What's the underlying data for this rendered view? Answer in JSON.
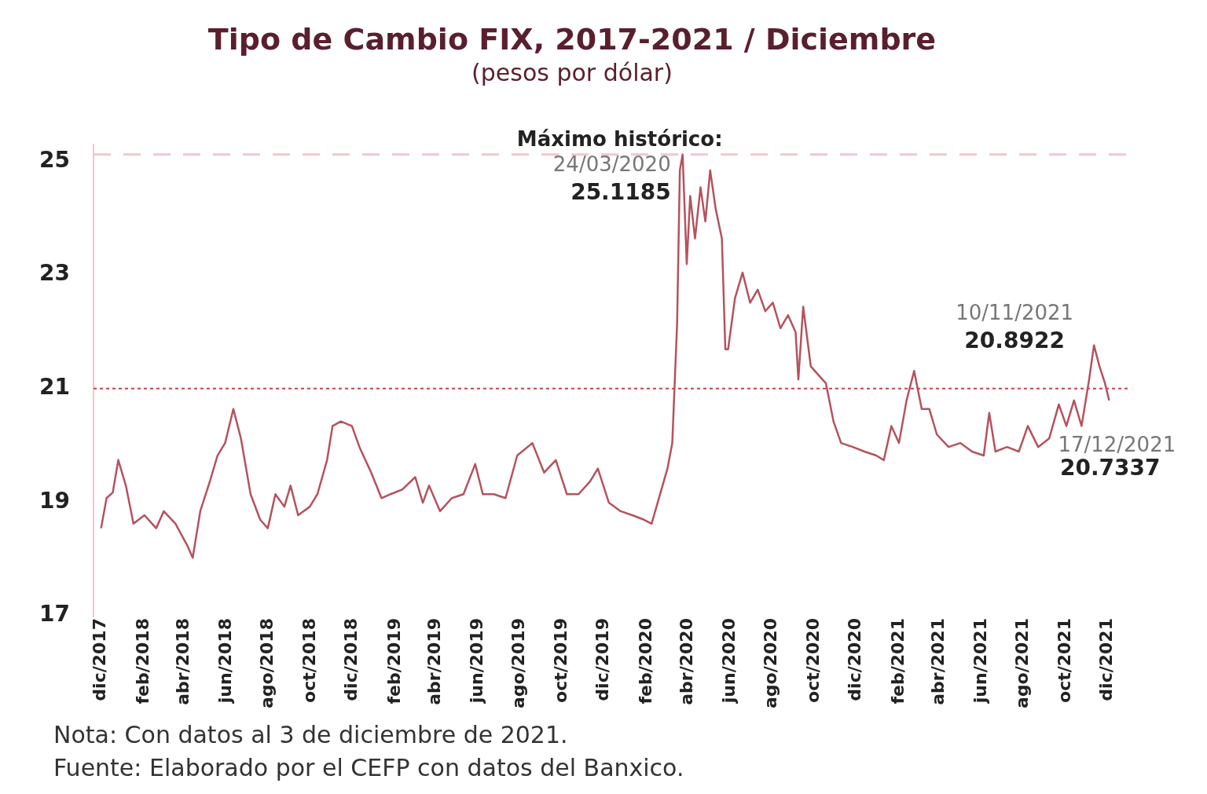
{
  "chart_data": {
    "type": "line",
    "title": "Tipo de Cambio FIX, 2017-2021 / Diciembre",
    "subtitle": "(pesos por dólar)",
    "x": [
      "2017-12-01",
      "2017-12-09",
      "2017-12-18",
      "2017-12-26",
      "2018-01-06",
      "2018-01-17",
      "2018-02-02",
      "2018-02-19",
      "2018-03-02",
      "2018-03-19",
      "2018-04-05",
      "2018-04-13",
      "2018-04-24",
      "2018-05-08",
      "2018-05-19",
      "2018-05-30",
      "2018-06-11",
      "2018-06-22",
      "2018-07-06",
      "2018-07-20",
      "2018-07-31",
      "2018-08-11",
      "2018-08-24",
      "2018-09-02",
      "2018-09-13",
      "2018-09-30",
      "2018-10-11",
      "2018-10-25",
      "2018-11-02",
      "2018-11-14",
      "2018-11-30",
      "2018-12-11",
      "2018-12-28",
      "2019-01-12",
      "2019-01-25",
      "2019-02-11",
      "2019-03-02",
      "2019-03-13",
      "2019-03-22",
      "2019-04-07",
      "2019-04-24",
      "2019-05-11",
      "2019-05-28",
      "2019-06-08",
      "2019-06-24",
      "2019-07-11",
      "2019-07-28",
      "2019-08-19",
      "2019-09-05",
      "2019-09-22",
      "2019-10-08",
      "2019-10-25",
      "2019-11-11",
      "2019-11-22",
      "2019-12-08",
      "2019-12-25",
      "2020-01-11",
      "2020-01-28",
      "2020-02-08",
      "2020-03-02",
      "2020-03-09",
      "2020-03-16",
      "2020-03-20",
      "2020-03-24",
      "2020-03-30",
      "2020-04-04",
      "2020-04-11",
      "2020-04-19",
      "2020-04-26",
      "2020-05-03",
      "2020-05-11",
      "2020-05-20",
      "2020-05-25",
      "2020-05-29",
      "2020-06-08",
      "2020-06-19",
      "2020-06-30",
      "2020-07-11",
      "2020-07-22",
      "2020-08-02",
      "2020-08-13",
      "2020-08-24",
      "2020-09-04",
      "2020-09-08",
      "2020-09-15",
      "2020-09-26",
      "2020-10-07",
      "2020-10-18",
      "2020-10-29",
      "2020-11-09",
      "2020-11-26",
      "2020-12-13",
      "2020-12-30",
      "2021-01-10",
      "2021-01-21",
      "2021-02-01",
      "2021-02-12",
      "2021-02-23",
      "2021-03-06",
      "2021-03-17",
      "2021-03-28",
      "2021-04-14",
      "2021-05-01",
      "2021-05-18",
      "2021-06-04",
      "2021-06-12",
      "2021-06-21",
      "2021-07-08",
      "2021-07-25",
      "2021-08-07",
      "2021-08-22",
      "2021-09-07",
      "2021-09-21",
      "2021-10-02",
      "2021-10-13",
      "2021-10-24",
      "2021-11-04",
      "2021-11-11",
      "2021-11-19",
      "2021-11-27",
      "2021-12-03"
    ],
    "series": [
      {
        "color": "#b5525e",
        "values": [
          18.54,
          19.07,
          19.17,
          19.74,
          19.29,
          18.62,
          18.77,
          18.54,
          18.84,
          18.62,
          18.24,
          18.02,
          18.84,
          19.37,
          19.82,
          20.04,
          20.64,
          20.12,
          19.14,
          18.69,
          18.54,
          19.14,
          18.92,
          19.29,
          18.77,
          18.92,
          19.14,
          19.74,
          20.34,
          20.42,
          20.34,
          19.97,
          19.52,
          19.07,
          19.14,
          19.22,
          19.44,
          18.99,
          19.29,
          18.84,
          19.07,
          19.14,
          19.67,
          19.14,
          19.14,
          19.07,
          19.82,
          20.04,
          19.52,
          19.74,
          19.14,
          19.14,
          19.37,
          19.59,
          18.99,
          18.84,
          18.77,
          18.69,
          18.62,
          19.59,
          20.04,
          22.14,
          24.84,
          25.12,
          23.19,
          24.39,
          23.64,
          24.54,
          23.94,
          24.84,
          24.16,
          23.64,
          21.69,
          21.69,
          22.59,
          23.04,
          22.51,
          22.74,
          22.36,
          22.51,
          22.06,
          22.29,
          21.99,
          21.16,
          22.44,
          21.39,
          21.24,
          21.09,
          20.42,
          20.04,
          19.97,
          19.89,
          19.82,
          19.74,
          20.34,
          20.04,
          20.79,
          21.31,
          20.64,
          20.64,
          20.19,
          19.97,
          20.04,
          19.89,
          19.82,
          20.57,
          19.89,
          19.97,
          19.89,
          20.34,
          19.97,
          20.12,
          20.72,
          20.34,
          20.79,
          20.34,
          21.16,
          21.76,
          21.39,
          21.09,
          20.79
        ]
      }
    ],
    "xlim": [
      "2017-11-20",
      "2021-12-31"
    ],
    "xticks": [
      {
        "value": "2017-12-01",
        "label": "dic/2017"
      },
      {
        "value": "2018-02-01",
        "label": "feb/2018"
      },
      {
        "value": "2018-04-01",
        "label": "abr/2018"
      },
      {
        "value": "2018-06-01",
        "label": "jun/2018"
      },
      {
        "value": "2018-08-01",
        "label": "ago/2018"
      },
      {
        "value": "2018-10-01",
        "label": "oct/2018"
      },
      {
        "value": "2018-12-01",
        "label": "dic/2018"
      },
      {
        "value": "2019-02-01",
        "label": "feb/2019"
      },
      {
        "value": "2019-04-01",
        "label": "abr/2019"
      },
      {
        "value": "2019-06-01",
        "label": "jun/2019"
      },
      {
        "value": "2019-08-01",
        "label": "ago/2019"
      },
      {
        "value": "2019-10-01",
        "label": "oct/2019"
      },
      {
        "value": "2019-12-01",
        "label": "dic/2019"
      },
      {
        "value": "2020-02-01",
        "label": "feb/2020"
      },
      {
        "value": "2020-04-01",
        "label": "abr/2020"
      },
      {
        "value": "2020-06-01",
        "label": "jun/2020"
      },
      {
        "value": "2020-08-01",
        "label": "ago/2020"
      },
      {
        "value": "2020-10-01",
        "label": "oct/2020"
      },
      {
        "value": "2020-12-01",
        "label": "dic/2020"
      },
      {
        "value": "2021-02-01",
        "label": "feb/2021"
      },
      {
        "value": "2021-04-01",
        "label": "abr/2021"
      },
      {
        "value": "2021-06-01",
        "label": "jun/2021"
      },
      {
        "value": "2021-08-01",
        "label": "ago/2021"
      },
      {
        "value": "2021-10-01",
        "label": "oct/2021"
      },
      {
        "value": "2021-12-01",
        "label": "dic/2021"
      }
    ],
    "ylim": [
      17,
      25.3
    ],
    "yticks": [
      17,
      19,
      21,
      23,
      25
    ],
    "grid": false,
    "legend": false,
    "ref_lines": [
      {
        "axis": "y",
        "value": 25.1185,
        "label": "Máximo histórico:",
        "color": "#f0c8cc",
        "line_style": "dashed"
      },
      {
        "axis": "y",
        "value": 21,
        "color": "#c8404c",
        "line_style": "dotted"
      }
    ],
    "annotations": [
      {
        "text": "24/03/2020",
        "x": "2020-03-24",
        "y": 25.1185
      },
      {
        "text": "25.1185",
        "x": "2020-03-24",
        "y": 25.1185
      },
      "10/11/2021",
      "20.8922",
      "17/12/2021",
      "20.7337",
      "Nota: Con datos al 3 de diciembre de 2021.",
      "Fuente: Elaborado por el CEFP con datos del Banxico."
    ]
  }
}
